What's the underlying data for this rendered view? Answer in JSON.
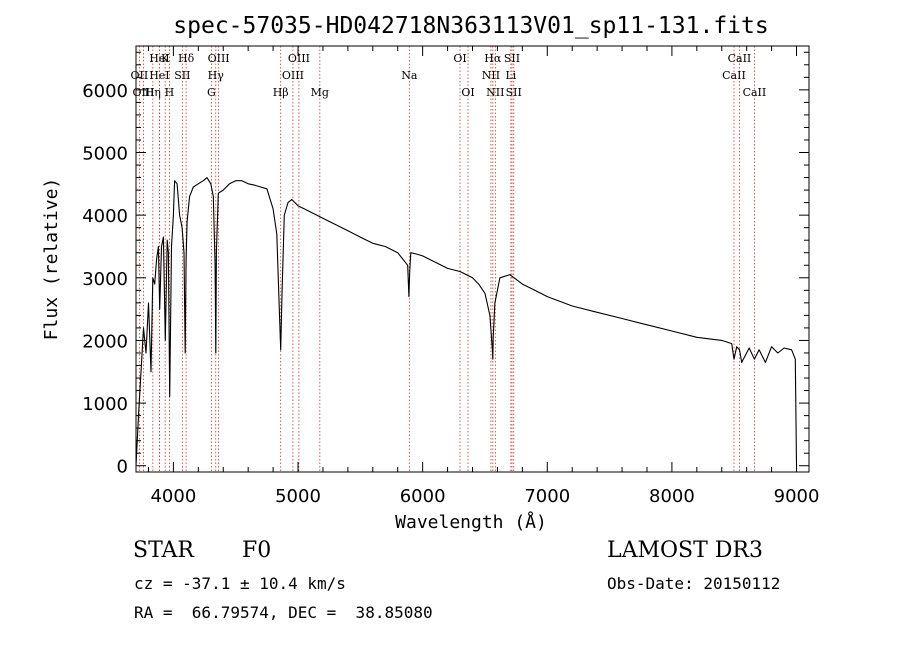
{
  "chart_data": {
    "type": "line",
    "title": "spec-57035-HD042718N363113V01_sp11-131.fits",
    "xlabel": "Wavelength (Å)",
    "ylabel": "Flux (relative)",
    "xlim": [
      3700,
      9100
    ],
    "ylim": [
      -100,
      6700
    ],
    "x_ticks": [
      4000,
      5000,
      6000,
      7000,
      8000,
      9000
    ],
    "y_ticks": [
      0,
      1000,
      2000,
      3000,
      4000,
      5000,
      6000
    ],
    "series": [
      {
        "name": "flux",
        "x": [
          3700,
          3720,
          3740,
          3760,
          3780,
          3800,
          3820,
          3835,
          3850,
          3865,
          3880,
          3890,
          3905,
          3920,
          3935,
          3950,
          3960,
          3970,
          3985,
          4000,
          4010,
          4030,
          4050,
          4070,
          4085,
          4095,
          4102,
          4110,
          4130,
          4160,
          4200,
          4240,
          4270,
          4300,
          4320,
          4335,
          4340,
          4345,
          4360,
          4400,
          4450,
          4500,
          4550,
          4600,
          4650,
          4700,
          4750,
          4800,
          4830,
          4850,
          4861,
          4872,
          4890,
          4920,
          4950,
          5000,
          5050,
          5100,
          5150,
          5200,
          5300,
          5400,
          5500,
          5600,
          5700,
          5800,
          5880,
          5890,
          5896,
          5905,
          5950,
          6000,
          6100,
          6200,
          6300,
          6400,
          6450,
          6500,
          6540,
          6560,
          6563,
          6566,
          6580,
          6620,
          6700,
          6800,
          6900,
          7000,
          7200,
          7400,
          7600,
          7800,
          8000,
          8200,
          8400,
          8480,
          8498,
          8520,
          8542,
          8560,
          8620,
          8662,
          8700,
          8750,
          8800,
          8850,
          8900,
          8960,
          8990,
          9000
        ],
        "values": [
          0,
          800,
          1500,
          2200,
          1800,
          2600,
          1500,
          3000,
          2900,
          3300,
          3500,
          2500,
          3500,
          3650,
          2000,
          3600,
          3400,
          1100,
          3500,
          4000,
          4550,
          4500,
          4000,
          3800,
          3400,
          1800,
          3300,
          3900,
          4300,
          4450,
          4500,
          4550,
          4600,
          4500,
          4300,
          3200,
          1800,
          3400,
          4350,
          4400,
          4500,
          4550,
          4550,
          4500,
          4480,
          4450,
          4420,
          4100,
          3700,
          2500,
          1850,
          2800,
          4000,
          4200,
          4250,
          4150,
          4100,
          4050,
          4000,
          3950,
          3850,
          3750,
          3650,
          3550,
          3500,
          3400,
          3200,
          2700,
          3100,
          3400,
          3380,
          3350,
          3250,
          3150,
          3100,
          3000,
          2900,
          2750,
          2400,
          1850,
          1700,
          2050,
          2600,
          3000,
          3050,
          2900,
          2800,
          2700,
          2550,
          2450,
          2350,
          2250,
          2150,
          2050,
          2000,
          1950,
          1700,
          1900,
          1850,
          1650,
          1880,
          1700,
          1850,
          1650,
          1900,
          1800,
          1880,
          1850,
          1700,
          0
        ]
      }
    ],
    "lines": [
      {
        "label": "HeI",
        "wl": 3888,
        "row": 0
      },
      {
        "label": "K",
        "wl": 3934,
        "row": 0
      },
      {
        "label": "Hδ",
        "wl": 4102,
        "row": 0
      },
      {
        "label": "OIII",
        "wl": 4363,
        "row": 0
      },
      {
        "label": "OIII",
        "wl": 5007,
        "row": 0
      },
      {
        "label": "OI",
        "wl": 6300,
        "row": 0
      },
      {
        "label": "Hα",
        "wl": 6563,
        "row": 0
      },
      {
        "label": "SII",
        "wl": 6717,
        "row": 0
      },
      {
        "label": "CaII",
        "wl": 8542,
        "row": 0
      },
      {
        "label": "OII",
        "wl": 3727,
        "row": 1
      },
      {
        "label": "HeI",
        "wl": 3888,
        "row": 1
      },
      {
        "label": "SII",
        "wl": 4072,
        "row": 1
      },
      {
        "label": "Hγ",
        "wl": 4340,
        "row": 1
      },
      {
        "label": "OIII",
        "wl": 4959,
        "row": 1
      },
      {
        "label": "Na",
        "wl": 5893,
        "row": 1
      },
      {
        "label": "NII",
        "wl": 6548,
        "row": 1
      },
      {
        "label": "Li",
        "wl": 6708,
        "row": 1
      },
      {
        "label": "CaII",
        "wl": 8498,
        "row": 1
      },
      {
        "label": "OIII",
        "wl": 3760,
        "row": 2
      },
      {
        "label": "Hη",
        "wl": 3835,
        "row": 2
      },
      {
        "label": "H",
        "wl": 3968,
        "row": 2
      },
      {
        "label": "G",
        "wl": 4305,
        "row": 2
      },
      {
        "label": "Hβ",
        "wl": 4861,
        "row": 2
      },
      {
        "label": "Mg",
        "wl": 5175,
        "row": 2
      },
      {
        "label": "OI",
        "wl": 6364,
        "row": 2
      },
      {
        "label": "NII",
        "wl": 6583,
        "row": 2
      },
      {
        "label": "SII",
        "wl": 6731,
        "row": 2
      },
      {
        "label": "CaII",
        "wl": 8662,
        "row": 2
      }
    ]
  },
  "info": {
    "class_label": "STAR",
    "subclass": "F0",
    "survey": "LAMOST DR3",
    "cz_text": "cz = -37.1 ± 10.4 km/s",
    "obs_date": "Obs-Date: 20150112",
    "coords": "RA =  66.79574, DEC =  38.85080"
  }
}
